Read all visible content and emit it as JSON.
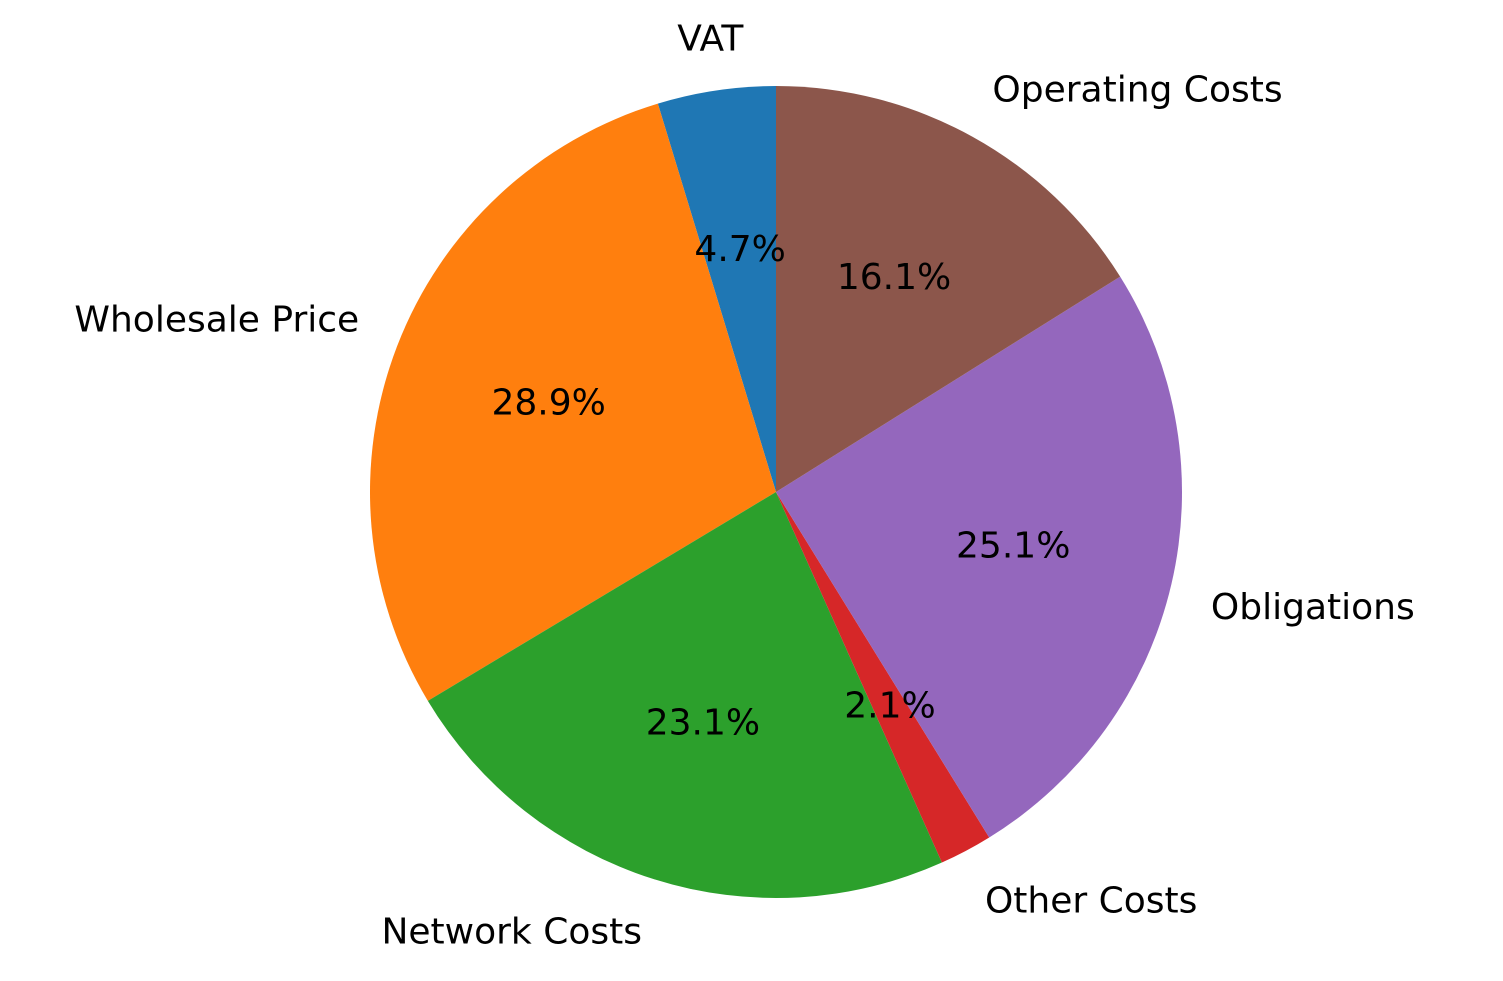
{
  "chart_data": {
    "type": "pie",
    "categories": [
      "VAT",
      "Wholesale Price",
      "Network Costs",
      "Other Costs",
      "Obligations",
      "Operating Costs"
    ],
    "values": [
      4.7,
      28.9,
      23.1,
      2.1,
      25.1,
      16.1
    ],
    "value_labels": [
      "4.7%",
      "28.9%",
      "23.1%",
      "2.1%",
      "25.1%",
      "16.1%"
    ],
    "colors": [
      "#1f77b4",
      "#ff7f0e",
      "#2ca02c",
      "#d62728",
      "#9467bd",
      "#8c564b"
    ],
    "start_angle_deg": 90,
    "direction": "counterclockwise",
    "title": "",
    "legend": "none"
  }
}
